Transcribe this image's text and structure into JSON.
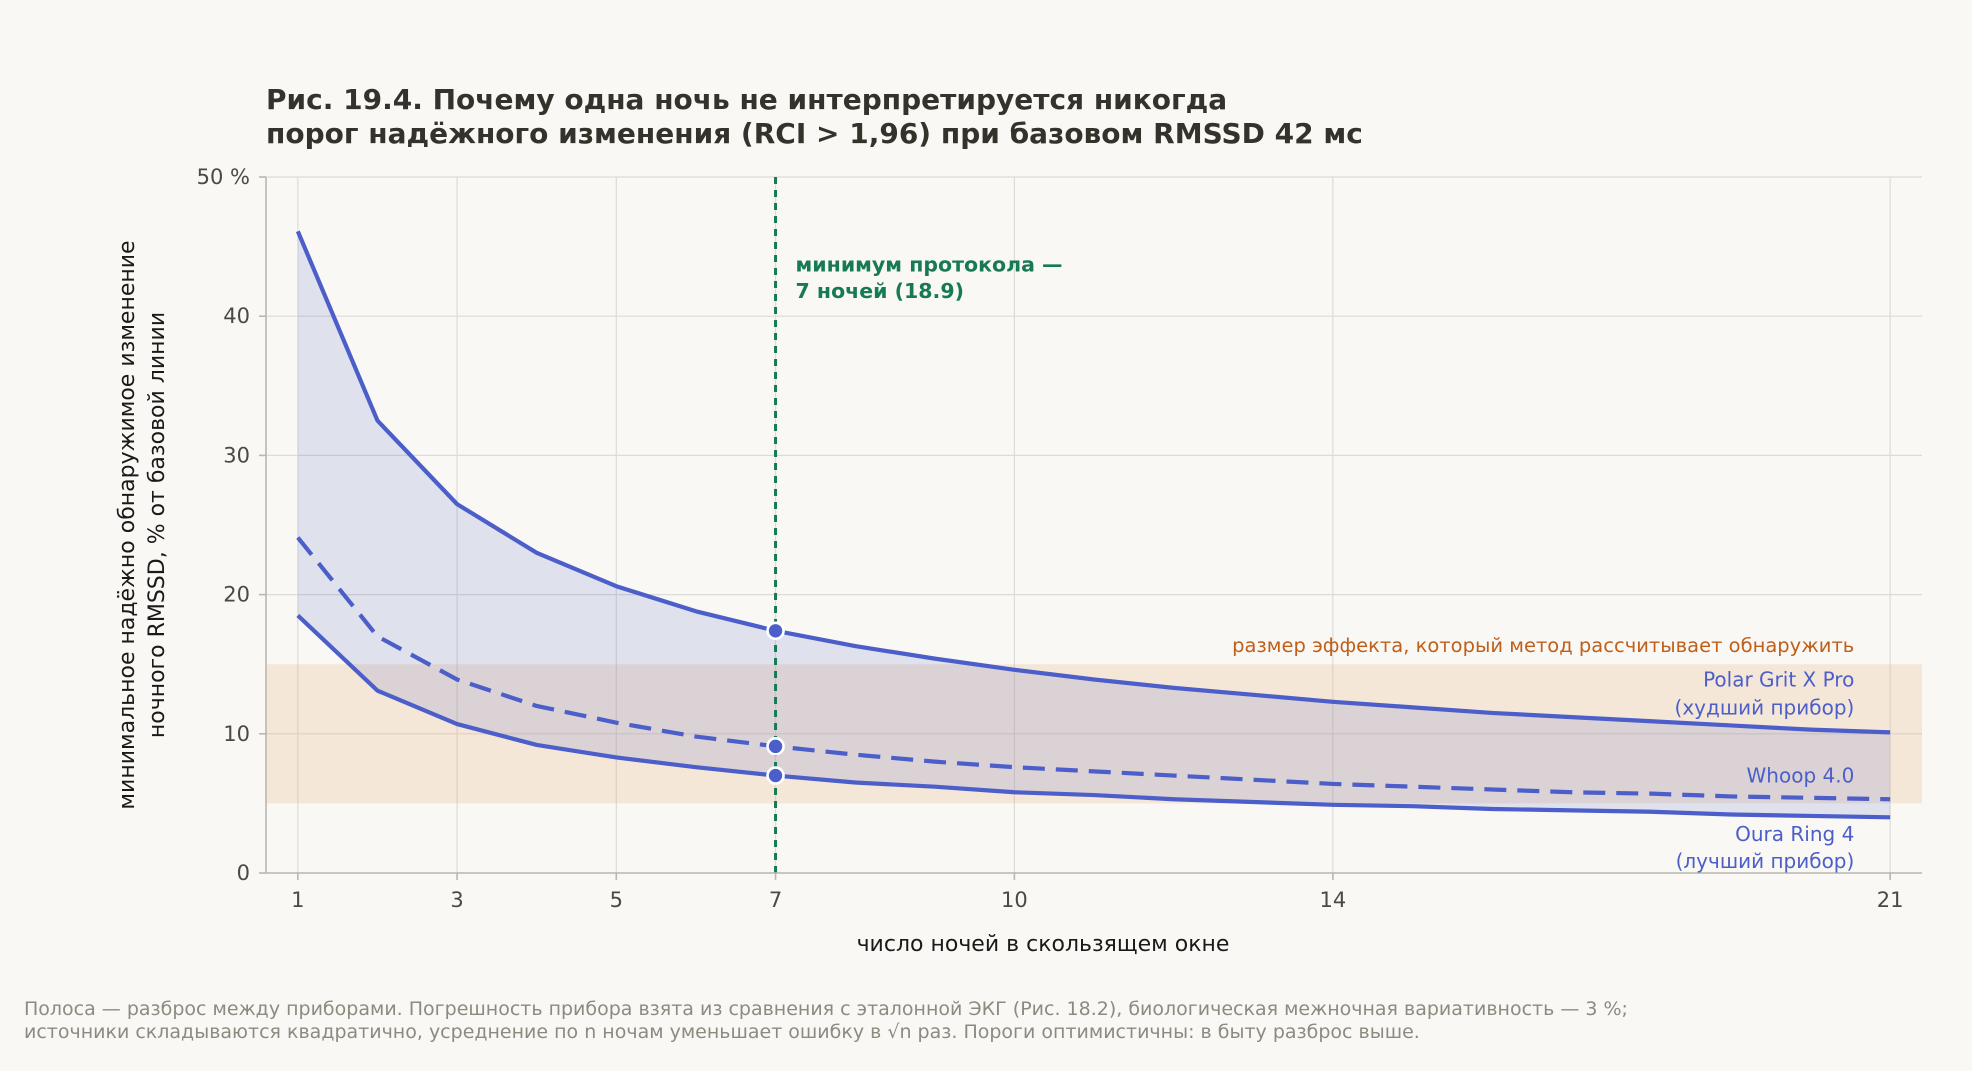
{
  "title": {
    "line1": "Рис. 19.4. Почему одна ночь не интерпретируется никогда",
    "line2": "порог надёжного изменения (RCI > 1,96) при базовом RMSSD 42 мс"
  },
  "footnote": {
    "line1": "Полоса — разброс между приборами. Погрешность прибора взята из сравнения с эталонной ЭКГ (Рис. 18.2), биологическая межночная вариативность — 3 %;",
    "line2": "источники складываются квадратично, усреднение по n ночам уменьшает ошибку в √n раз. Пороги оптимистичны: в быту разброс выше."
  },
  "chart_data": {
    "type": "line",
    "xlabel": "число ночей в скользящем окне",
    "ylabel_line1": "минимальное надёжно обнаружимое изменение",
    "ylabel_line2": "ночного RMSSD, % от базовой линии",
    "xlim": [
      0.6,
      21.4
    ],
    "ylim": [
      0,
      50
    ],
    "x_ticks": [
      1,
      3,
      5,
      7,
      10,
      14,
      21
    ],
    "y_ticks": [
      {
        "value": 0,
        "label": "0"
      },
      {
        "value": 10,
        "label": "10"
      },
      {
        "value": 20,
        "label": "20"
      },
      {
        "value": 30,
        "label": "30"
      },
      {
        "value": 40,
        "label": "40"
      },
      {
        "value": 50,
        "label": "50 %"
      }
    ],
    "grid": true,
    "x": [
      1,
      2,
      3,
      4,
      5,
      6,
      7,
      8,
      9,
      10,
      11,
      12,
      13,
      14,
      15,
      16,
      17,
      18,
      19,
      20,
      21
    ],
    "series": [
      {
        "name": "Polar Grit X Pro",
        "name_line2": "(худший прибор)",
        "style": "solid",
        "color": "#4c5ec9",
        "values": [
          46.1,
          32.5,
          26.5,
          23.0,
          20.6,
          18.8,
          17.4,
          16.3,
          15.4,
          14.6,
          13.9,
          13.3,
          12.8,
          12.3,
          11.9,
          11.5,
          11.2,
          10.9,
          10.6,
          10.3,
          10.1
        ]
      },
      {
        "name": "Whoop 4.0",
        "style": "dashed",
        "color": "#4c5ec9",
        "values": [
          24.1,
          17.0,
          13.9,
          12.0,
          10.8,
          9.8,
          9.1,
          8.5,
          8.0,
          7.6,
          7.3,
          7.0,
          6.7,
          6.4,
          6.2,
          6.0,
          5.8,
          5.7,
          5.5,
          5.4,
          5.3
        ]
      },
      {
        "name": "Oura Ring 4",
        "name_line2": "(лучший прибор)",
        "style": "solid",
        "color": "#4c5ec9",
        "values": [
          18.5,
          13.1,
          10.7,
          9.2,
          8.3,
          7.6,
          7.0,
          6.5,
          6.2,
          5.8,
          5.6,
          5.3,
          5.1,
          4.9,
          4.8,
          4.6,
          4.5,
          4.4,
          4.2,
          4.1,
          4.0
        ]
      }
    ],
    "fill_between": {
      "upper": "Polar Grit X Pro",
      "lower": "Oura Ring 4",
      "color": "#4c5ec9",
      "opacity": 0.15
    },
    "band": {
      "y_from": 5,
      "y_to": 15,
      "color": "#e8ab76",
      "opacity": 0.22,
      "label": "размер эффекта, который метод рассчитывает обнаружить"
    },
    "vline": {
      "x": 7,
      "color": "#177a55",
      "label_line1": "минимум протокола —",
      "label_line2": "7 ночей (18.9)"
    },
    "markers": [
      {
        "x": 7,
        "y": 17.4
      },
      {
        "x": 7,
        "y": 9.1
      },
      {
        "x": 7,
        "y": 7.0
      }
    ]
  }
}
